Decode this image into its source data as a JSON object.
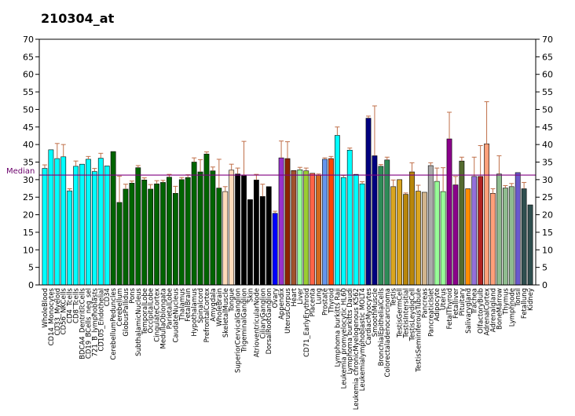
{
  "chart_data": {
    "type": "bar",
    "title": "210304_at",
    "ylim": [
      0,
      70
    ],
    "yticks": [
      0,
      5,
      10,
      15,
      20,
      25,
      30,
      35,
      40,
      45,
      50,
      55,
      60,
      65,
      70
    ],
    "median_label": "Median",
    "median_value": 31.3,
    "median_color": "#800080",
    "legend": "none",
    "grid": false,
    "categories": [
      "WholeBlood",
      "CD14_Monocytes",
      "CD33_Myeloid",
      "CD56_NKCells",
      "CD4_Tcells",
      "CD8_Tcells",
      "BDCA4_DentriticCells",
      "CD19_BCells_neg_sel",
      "721_B_lymphoblasts",
      "CD105_Endothelial",
      "CD34",
      "CerebellumPeduncles",
      "Cerebellum",
      "GlobusPallidus",
      "Pons",
      "SubthalamicNucleus",
      "TemporalLobe",
      "OccipitalLobe",
      "CingulateCortex",
      "MedullaOblongata",
      "ParietalLobe",
      "CaudateNucleus",
      "Thalamus",
      "FetalBrain",
      "Hypothalamus",
      "Spinalcord",
      "PrefrontalCortex",
      "Amygdala",
      "WholeBrain",
      "SkeletalMuscle",
      "Tongue",
      "SuperiorCervicalGanglion",
      "TrigeminalGanglion",
      "Skin",
      "AtrioventricularNode",
      "CiliaryGanglion",
      "DorsalRootGanglion",
      "Ovary",
      "Appendix",
      "UterusCorpus",
      "Heart",
      "Liver",
      "CD71_EarlyErythroid",
      "Placenta",
      "Lung",
      "Prostate",
      "Thyroid",
      "Lymphoma burkitts Raji",
      "Leukemia promyelocytic HL60",
      "Lymphoma burkitts Daudi",
      "Leukemia chronicMyelogenous K562",
      "Leukemialymphoblastic MOLT4",
      "CardiacMyocytes",
      "SmoothMuscle",
      "BronchialEpithelialCells",
      "Colorectaladenocarcinoma",
      "Testis",
      "TestisGermCell",
      "TestisIntersitial",
      "TestisLeydigCell",
      "TestisSeminiferousTubule",
      "Pancreas",
      "PancreaticIslet",
      "Adipocyte",
      "Uterus",
      "FetalThyroid",
      "Fetalliver",
      "Pituitary",
      "Salivarygland",
      "Trachea",
      "OlfactoryBulb",
      "AdrenalCortex",
      "Adrenalgland",
      "BoneMarrow",
      "Thymus",
      "Lymphnode",
      "Tonsil",
      "Fetallung",
      "Kidney"
    ],
    "values": [
      33.2,
      38.5,
      36.0,
      36.5,
      26.8,
      33.8,
      34.4,
      35.8,
      32.3,
      36.1,
      33.9,
      38.0,
      23.5,
      27.3,
      29.0,
      33.4,
      29.9,
      27.3,
      28.8,
      29.2,
      30.7,
      26.1,
      30.0,
      30.6,
      35.0,
      32.2,
      37.3,
      32.5,
      27.6,
      26.6,
      32.7,
      31.6,
      31.1,
      24.3,
      29.9,
      25.2,
      28.0,
      20.4,
      36.2,
      36.0,
      32.6,
      32.8,
      32.5,
      31.8,
      31.3,
      35.8,
      36.0,
      42.6,
      30.6,
      38.4,
      31.5,
      28.8,
      47.5,
      36.8,
      33.8,
      35.6,
      28.0,
      30.0,
      25.8,
      32.2,
      26.7,
      26.4,
      34.0,
      29.5,
      26.6,
      41.6,
      28.5,
      35.3,
      27.4,
      30.9,
      30.9,
      40.2,
      26.1,
      31.6,
      27.6,
      28.0,
      32.0,
      27.4,
      22.8
    ],
    "errors": [
      1.0,
      0.0,
      4.3,
      3.5,
      0.6,
      1.5,
      0.0,
      0.8,
      0.9,
      1.4,
      0.0,
      0.0,
      7.5,
      1.4,
      0.6,
      0.6,
      0.6,
      1.3,
      0.9,
      0.6,
      0.8,
      2.0,
      0.6,
      0.8,
      1.2,
      3.5,
      0.6,
      1.1,
      8.2,
      1.4,
      1.7,
      1.7,
      9.8,
      0.0,
      1.6,
      3.5,
      0.0,
      0.6,
      4.8,
      4.8,
      0.0,
      0.7,
      0.8,
      0.0,
      0.3,
      0.4,
      0.6,
      2.4,
      0.6,
      0.6,
      0.0,
      0.6,
      0.6,
      14.2,
      0.5,
      0.8,
      1.9,
      0.0,
      0.4,
      2.6,
      1.7,
      0.0,
      0.8,
      3.8,
      6.8,
      7.6,
      2.4,
      1.1,
      0.0,
      5.5,
      8.8,
      12.0,
      1.3,
      5.2,
      0.7,
      0.9,
      0.0,
      1.8,
      0.0
    ],
    "colors": [
      "#00ffff",
      "#00ffff",
      "#00ffff",
      "#00ffff",
      "#00ffff",
      "#00ffff",
      "#00ffff",
      "#00ffff",
      "#00ffff",
      "#00ffff",
      "#00ffff",
      "#006400",
      "#006400",
      "#006400",
      "#006400",
      "#006400",
      "#006400",
      "#006400",
      "#006400",
      "#006400",
      "#006400",
      "#006400",
      "#006400",
      "#006400",
      "#006400",
      "#006400",
      "#006400",
      "#006400",
      "#006400",
      "#ffdab9",
      "#ffdab9",
      "#000000",
      "#000000",
      "#000000",
      "#000000",
      "#000000",
      "#000000",
      "#0000ff",
      "#9932cc",
      "#8b2500",
      "#a0522d",
      "#98fb98",
      "#9acd32",
      "#ff6347",
      "#d2691e",
      "#6495ed",
      "#ff4500",
      "#00ffff",
      "#00ffff",
      "#00ffff",
      "#00ffff",
      "#00ffff",
      "#000080",
      "#000080",
      "#2e8b57",
      "#2e8b57",
      "#daa520",
      "#daa520",
      "#b8860b",
      "#b8860b",
      "#daa520",
      "#d2b48c",
      "#a9a9a9",
      "#98fb98",
      "#98fb98",
      "#8b008b",
      "#8b008b",
      "#556b2f",
      "#ff8c00",
      "#9370db",
      "#b22222",
      "#ffa07a",
      "#ffa07a",
      "#8fbc8f",
      "#8fbc8f",
      "#8fbc8f",
      "#6a5acd",
      "#2f4f4f",
      "#2f4f4f"
    ]
  }
}
